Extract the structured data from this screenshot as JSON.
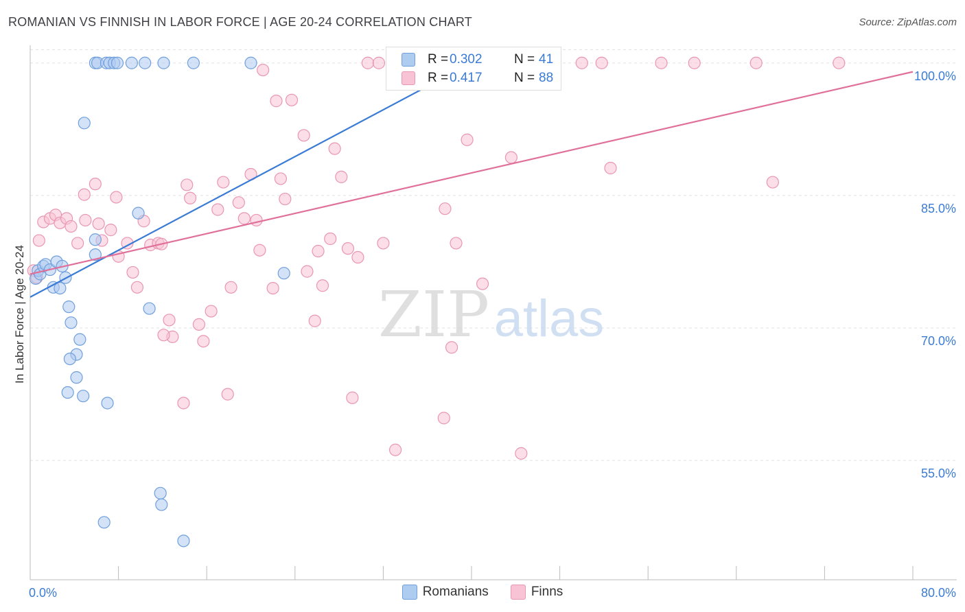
{
  "header": {
    "title": "ROMANIAN VS FINNISH IN LABOR FORCE | AGE 20-24 CORRELATION CHART",
    "source": "Source: ZipAtlas.com"
  },
  "watermark": {
    "zip": "ZIP",
    "atlas": "atlas"
  },
  "stats": {
    "romanians": {
      "r_label": "R =",
      "r": "0.302",
      "n_label": "N =",
      "n": "41"
    },
    "finns": {
      "r_label": "R =",
      "r": "0.417",
      "n_label": "N =",
      "n": "88"
    }
  },
  "legend": {
    "romanians": "Romanians",
    "finns": "Finns"
  },
  "colors": {
    "romanians_fill": "#aecbf0",
    "romanians_stroke": "#6f9fdc",
    "romanians_line": "#3a7bd5",
    "finns_fill": "#f8c3d4",
    "finns_stroke": "#e996b2",
    "finns_line": "#e07099",
    "tick_label": "#3a7bd5",
    "grid": "#e2e2e2"
  },
  "chart_data": {
    "type": "scatter",
    "title": "ROMANIAN VS FINNISH IN LABOR FORCE | AGE 20-24 CORRELATION CHART",
    "xlabel": "",
    "ylabel": "In Labor Force | Age 20-24",
    "xlim": [
      0,
      80
    ],
    "ylim": [
      41.5,
      102
    ],
    "x_tick_labels": [
      {
        "value": 0,
        "label": "0.0%"
      },
      {
        "value": 80,
        "label": "80.0%"
      }
    ],
    "y_ticks": [
      {
        "value": 55,
        "label": "55.0%"
      },
      {
        "value": 70,
        "label": "70.0%"
      },
      {
        "value": 85,
        "label": "85.0%"
      },
      {
        "value": 100,
        "label": "100.0%"
      }
    ],
    "grid": true,
    "legend_position": "bottom-center",
    "series": [
      {
        "name": "Romanians",
        "points": [
          [
            0.5,
            75.6
          ],
          [
            0.7,
            76.5
          ],
          [
            0.9,
            76.1
          ],
          [
            1.2,
            77.0
          ],
          [
            1.4,
            77.2
          ],
          [
            1.8,
            76.6
          ],
          [
            2.1,
            74.6
          ],
          [
            2.4,
            77.5
          ],
          [
            2.7,
            74.5
          ],
          [
            2.9,
            77.0
          ],
          [
            3.2,
            75.7
          ],
          [
            3.5,
            72.4
          ],
          [
            3.7,
            70.6
          ],
          [
            4.2,
            67.0
          ],
          [
            4.5,
            68.7
          ],
          [
            3.6,
            66.5
          ],
          [
            4.2,
            64.4
          ],
          [
            3.4,
            62.7
          ],
          [
            4.8,
            62.3
          ],
          [
            5.9,
            80.0
          ],
          [
            5.9,
            78.3
          ],
          [
            4.9,
            93.2
          ],
          [
            5.9,
            100.0
          ],
          [
            6.1,
            100.0
          ],
          [
            6.9,
            100.0
          ],
          [
            7.2,
            100.0
          ],
          [
            7.6,
            100.0
          ],
          [
            7.9,
            100.0
          ],
          [
            9.2,
            100.0
          ],
          [
            10.4,
            100.0
          ],
          [
            12.1,
            100.0
          ],
          [
            14.8,
            100.0
          ],
          [
            20.0,
            100.0
          ],
          [
            9.8,
            83.0
          ],
          [
            10.8,
            72.2
          ],
          [
            7.0,
            61.5
          ],
          [
            11.8,
            51.3
          ],
          [
            11.9,
            50.0
          ],
          [
            6.7,
            48.0
          ],
          [
            13.9,
            45.9
          ],
          [
            23.0,
            76.2
          ]
        ]
      },
      {
        "name": "Finns",
        "points": [
          [
            0.3,
            76.5
          ],
          [
            0.6,
            75.7
          ],
          [
            0.8,
            79.9
          ],
          [
            1.2,
            82.0
          ],
          [
            1.8,
            82.4
          ],
          [
            2.3,
            82.8
          ],
          [
            2.7,
            81.9
          ],
          [
            3.3,
            82.4
          ],
          [
            3.7,
            81.5
          ],
          [
            4.3,
            79.6
          ],
          [
            5.0,
            82.2
          ],
          [
            6.2,
            81.8
          ],
          [
            6.5,
            79.9
          ],
          [
            7.3,
            81.1
          ],
          [
            8.0,
            78.1
          ],
          [
            4.9,
            85.1
          ],
          [
            5.9,
            86.3
          ],
          [
            7.8,
            84.8
          ],
          [
            8.8,
            79.6
          ],
          [
            9.3,
            76.3
          ],
          [
            9.7,
            74.6
          ],
          [
            10.3,
            82.1
          ],
          [
            10.9,
            79.4
          ],
          [
            11.6,
            79.6
          ],
          [
            11.9,
            79.5
          ],
          [
            12.6,
            70.9
          ],
          [
            12.9,
            69.0
          ],
          [
            12.1,
            69.2
          ],
          [
            13.9,
            61.5
          ],
          [
            14.2,
            86.2
          ],
          [
            14.5,
            84.7
          ],
          [
            15.3,
            70.4
          ],
          [
            15.7,
            68.5
          ],
          [
            16.4,
            71.9
          ],
          [
            17.0,
            83.4
          ],
          [
            17.5,
            86.5
          ],
          [
            17.9,
            62.5
          ],
          [
            18.2,
            74.6
          ],
          [
            18.9,
            84.2
          ],
          [
            19.4,
            82.4
          ],
          [
            20.0,
            87.4
          ],
          [
            20.5,
            82.2
          ],
          [
            20.8,
            78.8
          ],
          [
            21.1,
            99.2
          ],
          [
            22.0,
            74.5
          ],
          [
            22.3,
            95.7
          ],
          [
            22.7,
            86.9
          ],
          [
            23.1,
            84.6
          ],
          [
            23.7,
            95.8
          ],
          [
            24.8,
            91.8
          ],
          [
            25.1,
            76.4
          ],
          [
            25.8,
            70.8
          ],
          [
            26.1,
            78.7
          ],
          [
            26.5,
            74.8
          ],
          [
            27.2,
            80.1
          ],
          [
            27.6,
            90.3
          ],
          [
            28.2,
            87.1
          ],
          [
            28.8,
            79.0
          ],
          [
            29.2,
            62.1
          ],
          [
            29.7,
            78.0
          ],
          [
            30.6,
            100.0
          ],
          [
            31.6,
            100.0
          ],
          [
            32.0,
            79.6
          ],
          [
            33.2,
            100.0
          ],
          [
            33.1,
            56.2
          ],
          [
            35.6,
            100.0
          ],
          [
            36.3,
            100.0
          ],
          [
            37.5,
            59.8
          ],
          [
            37.6,
            83.5
          ],
          [
            38.2,
            67.8
          ],
          [
            38.6,
            79.6
          ],
          [
            39.6,
            91.3
          ],
          [
            40.2,
            100.0
          ],
          [
            41.0,
            75.0
          ],
          [
            43.0,
            100.0
          ],
          [
            43.6,
            89.3
          ],
          [
            44.5,
            55.8
          ],
          [
            45.0,
            100.0
          ],
          [
            46.5,
            100.0
          ],
          [
            50.0,
            100.0
          ],
          [
            51.8,
            100.0
          ],
          [
            52.6,
            88.1
          ],
          [
            57.2,
            100.0
          ],
          [
            60.2,
            100.0
          ],
          [
            65.8,
            100.0
          ],
          [
            67.3,
            86.5
          ],
          [
            73.3,
            100.0
          ],
          [
            47.0,
            100.0
          ]
        ]
      }
    ],
    "trendlines": [
      {
        "series": "Romanians",
        "from": [
          0,
          73.5
        ],
        "to": [
          40,
          100.0
        ]
      },
      {
        "series": "Finns",
        "from": [
          0,
          76.1
        ],
        "to": [
          80,
          99.0
        ]
      }
    ]
  }
}
